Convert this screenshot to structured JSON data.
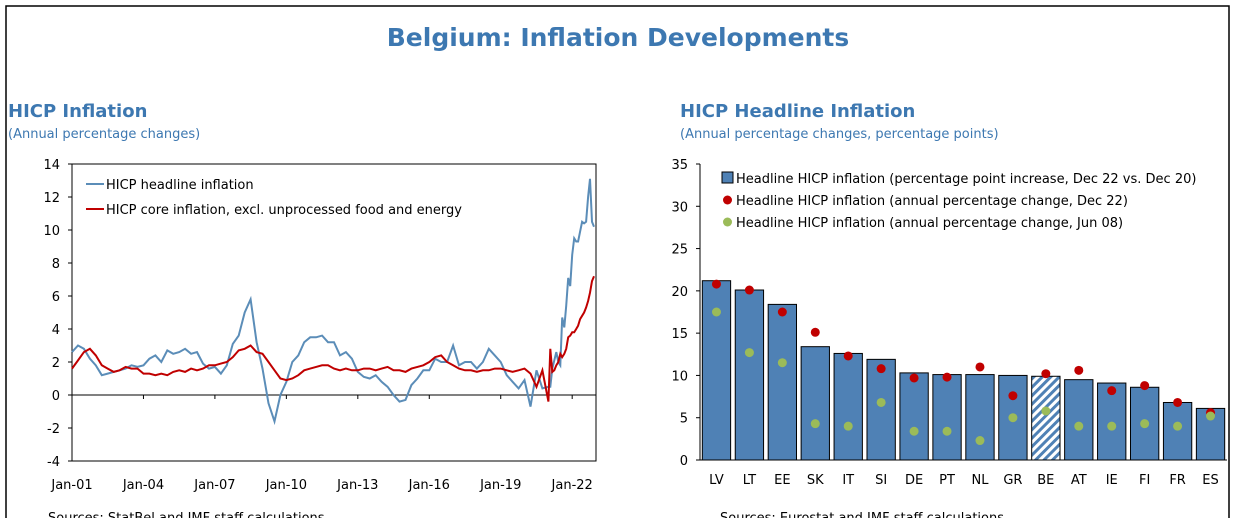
{
  "title": "Belgium: Inflation Developments",
  "chart_data": [
    {
      "type": "line",
      "title": "HICP Inflation",
      "subtitle": "(Annual percentage changes)",
      "source": "Sources: StatBel and IMF staff calculations.",
      "legend": "upper left",
      "x": [
        2001,
        2001.25,
        2001.5,
        2001.75,
        2002,
        2002.25,
        2002.5,
        2002.75,
        2003,
        2003.25,
        2003.5,
        2003.75,
        2004,
        2004.25,
        2004.5,
        2004.75,
        2005,
        2005.25,
        2005.5,
        2005.75,
        2006,
        2006.25,
        2006.5,
        2006.75,
        2007,
        2007.25,
        2007.5,
        2007.75,
        2008,
        2008.25,
        2008.5,
        2008.75,
        2009,
        2009.25,
        2009.5,
        2009.75,
        2010,
        2010.25,
        2010.5,
        2010.75,
        2011,
        2011.25,
        2011.5,
        2011.75,
        2012,
        2012.25,
        2012.5,
        2012.75,
        2013,
        2013.25,
        2013.5,
        2013.75,
        2014,
        2014.25,
        2014.5,
        2014.75,
        2015,
        2015.25,
        2015.5,
        2015.75,
        2016,
        2016.25,
        2016.5,
        2016.75,
        2017,
        2017.25,
        2017.5,
        2017.75,
        2018,
        2018.25,
        2018.5,
        2018.75,
        2019,
        2019.25,
        2019.5,
        2019.75,
        2020,
        2020.25,
        2020.5,
        2020.75,
        2021,
        2021.083,
        2021.167,
        2021.25,
        2021.333,
        2021.417,
        2021.5,
        2021.583,
        2021.667,
        2021.75,
        2021.833,
        2021.917,
        2022,
        2022.083,
        2022.167,
        2022.25,
        2022.333,
        2022.417,
        2022.5,
        2022.583,
        2022.667,
        2022.75,
        2022.833,
        2022.917
      ],
      "series": [
        {
          "name": "HICP headline inflation",
          "color": "#5b8db8",
          "values": [
            2.6,
            3.0,
            2.8,
            2.2,
            1.8,
            1.2,
            1.3,
            1.4,
            1.5,
            1.6,
            1.8,
            1.7,
            1.8,
            2.2,
            2.4,
            2.0,
            2.7,
            2.5,
            2.6,
            2.8,
            2.5,
            2.6,
            1.9,
            1.6,
            1.7,
            1.3,
            1.8,
            3.1,
            3.6,
            5.0,
            5.8,
            3.2,
            1.6,
            -0.5,
            -1.6,
            0.0,
            0.8,
            2.0,
            2.4,
            3.2,
            3.5,
            3.5,
            3.6,
            3.2,
            3.2,
            2.4,
            2.6,
            2.2,
            1.4,
            1.1,
            1.0,
            1.2,
            0.8,
            0.5,
            0.0,
            -0.4,
            -0.3,
            0.6,
            1.0,
            1.5,
            1.5,
            2.2,
            2.0,
            2.0,
            3.0,
            1.8,
            2.0,
            2.0,
            1.6,
            2.0,
            2.8,
            2.4,
            2.0,
            1.2,
            0.8,
            0.4,
            0.9,
            -0.7,
            1.5,
            0.4,
            0.5,
            0.5,
            1.6,
            2.1,
            2.6,
            2.0,
            1.8,
            4.7,
            4.1,
            5.4,
            7.1,
            6.6,
            8.5,
            9.5,
            9.3,
            9.3,
            9.9,
            10.5,
            10.4,
            10.5,
            12.0,
            13.1,
            10.5,
            10.2
          ]
        },
        {
          "name": "HICP core inflation, excl. unprocessed food and energy",
          "color": "#c00000",
          "values": [
            1.6,
            2.1,
            2.6,
            2.8,
            2.4,
            1.8,
            1.6,
            1.4,
            1.5,
            1.7,
            1.6,
            1.6,
            1.3,
            1.3,
            1.2,
            1.3,
            1.2,
            1.4,
            1.5,
            1.4,
            1.6,
            1.5,
            1.6,
            1.8,
            1.8,
            1.9,
            2.0,
            2.3,
            2.7,
            2.8,
            3.0,
            2.6,
            2.5,
            2.0,
            1.5,
            1.0,
            0.9,
            1.0,
            1.2,
            1.5,
            1.6,
            1.7,
            1.8,
            1.8,
            1.6,
            1.5,
            1.6,
            1.5,
            1.5,
            1.6,
            1.6,
            1.5,
            1.6,
            1.7,
            1.5,
            1.5,
            1.4,
            1.6,
            1.7,
            1.8,
            2.0,
            2.3,
            2.4,
            2.0,
            1.8,
            1.6,
            1.5,
            1.5,
            1.4,
            1.5,
            1.5,
            1.6,
            1.6,
            1.5,
            1.4,
            1.5,
            1.6,
            1.3,
            0.5,
            1.5,
            -0.4,
            2.8,
            1.4,
            1.5,
            1.8,
            2.0,
            2.5,
            2.3,
            2.5,
            2.8,
            3.5,
            3.6,
            3.8,
            3.8,
            4.0,
            4.2,
            4.6,
            4.8,
            5.0,
            5.3,
            5.7,
            6.2,
            6.9,
            7.2
          ]
        }
      ],
      "xlim": [
        2001,
        2023
      ],
      "xticks": [
        {
          "value": 2001,
          "label": "Jan-01"
        },
        {
          "value": 2004,
          "label": "Jan-04"
        },
        {
          "value": 2007,
          "label": "Jan-07"
        },
        {
          "value": 2010,
          "label": "Jan-10"
        },
        {
          "value": 2013,
          "label": "Jan-13"
        },
        {
          "value": 2016,
          "label": "Jan-16"
        },
        {
          "value": 2019,
          "label": "Jan-19"
        },
        {
          "value": 2022,
          "label": "Jan-22"
        }
      ],
      "ylim": [
        -4,
        14
      ],
      "yticks": [
        -4,
        -2,
        0,
        2,
        4,
        6,
        8,
        10,
        12,
        14
      ]
    },
    {
      "type": "bar",
      "title": "HICP Headline Inflation",
      "subtitle": "(Annual percentage changes, percentage points)",
      "source": "Sources: Eurostat and IMF staff calculations.",
      "legend": "upper left",
      "hatched": "BE",
      "categories": [
        "LV",
        "LT",
        "EE",
        "SK",
        "IT",
        "SI",
        "DE",
        "PT",
        "NL",
        "GR",
        "BE",
        "AT",
        "IE",
        "FI",
        "FR",
        "ES"
      ],
      "series": [
        {
          "name": "Headline HICP inflation (percentage point increase, Dec 22 vs. Dec 20)",
          "type": "bar",
          "color": "#4f81b5",
          "values": [
            21.2,
            20.1,
            18.4,
            13.4,
            12.6,
            11.9,
            10.3,
            10.1,
            10.1,
            10.0,
            9.9,
            9.5,
            9.1,
            8.6,
            6.8,
            6.1
          ]
        },
        {
          "name": "Headline HICP inflation (annual percentage change, Dec 22)",
          "type": "scatter",
          "color": "#c00000",
          "values": [
            20.8,
            20.1,
            17.5,
            15.1,
            12.3,
            10.8,
            9.7,
            9.8,
            11.0,
            7.6,
            10.2,
            10.6,
            8.2,
            8.8,
            6.8,
            5.6
          ]
        },
        {
          "name": "Headline HICP inflation (annual percentage change, Jun 08)",
          "type": "scatter",
          "color": "#9bbb59",
          "values": [
            17.5,
            12.7,
            11.5,
            4.3,
            4.0,
            6.8,
            3.4,
            3.4,
            2.3,
            5.0,
            5.8,
            4.0,
            4.0,
            4.3,
            4.0,
            5.2
          ]
        }
      ],
      "ylim": [
        0,
        35
      ],
      "yticks": [
        0,
        5,
        10,
        15,
        20,
        25,
        30,
        35
      ]
    }
  ]
}
